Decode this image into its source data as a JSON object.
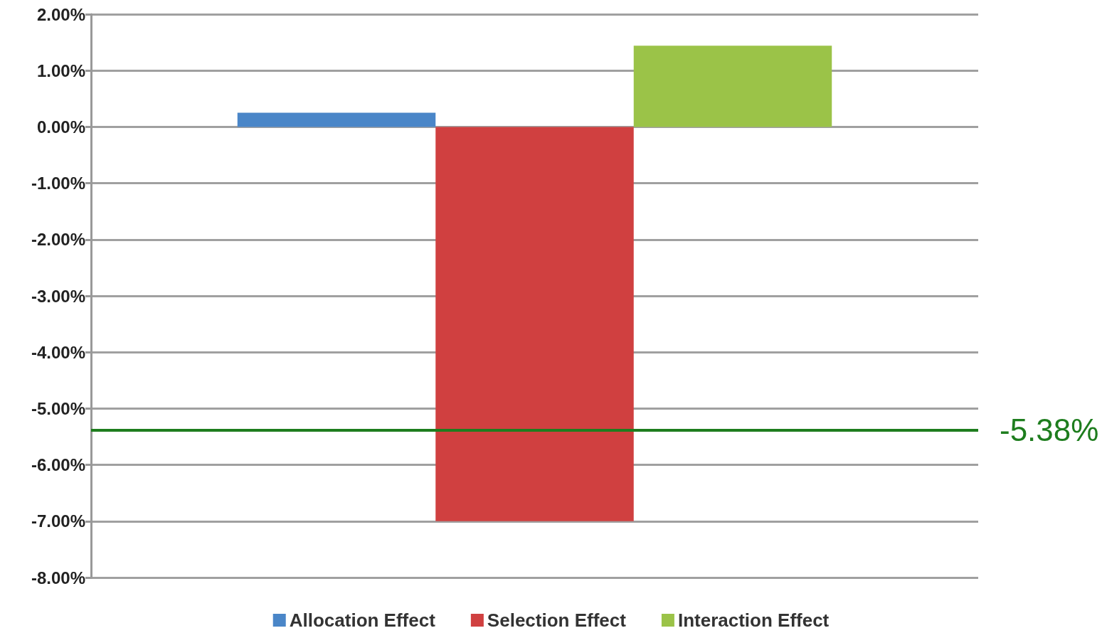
{
  "chart_data": {
    "type": "bar",
    "categories": [
      null
    ],
    "series": [
      {
        "name": "Allocation Effect",
        "color": "#4a86c8",
        "values": [
          0.25
        ]
      },
      {
        "name": "Selection Effect",
        "color": "#d04040",
        "values": [
          -7.0
        ]
      },
      {
        "name": "Interaction Effect",
        "color": "#9bc348",
        "values": [
          1.44
        ]
      }
    ],
    "ylim": [
      -8,
      2
    ],
    "yticks": [
      {
        "value": -8,
        "label": "-8.00%"
      },
      {
        "value": -7,
        "label": "-7.00%"
      },
      {
        "value": -6,
        "label": "-6.00%"
      },
      {
        "value": -5,
        "label": "-5.00%"
      },
      {
        "value": -4,
        "label": "-4.00%"
      },
      {
        "value": -3,
        "label": "-3.00%"
      },
      {
        "value": -2,
        "label": "-2.00%"
      },
      {
        "value": -1,
        "label": "-1.00%"
      },
      {
        "value": 0,
        "label": "0.00%"
      },
      {
        "value": 1,
        "label": "1.00%"
      },
      {
        "value": 2,
        "label": "2.00%"
      }
    ],
    "ref_lines": [
      {
        "axis": "y",
        "value": -5.38,
        "label": "-5.38%",
        "color": "#1e7d1e"
      }
    ],
    "grid": "y",
    "legend": "bottom"
  }
}
